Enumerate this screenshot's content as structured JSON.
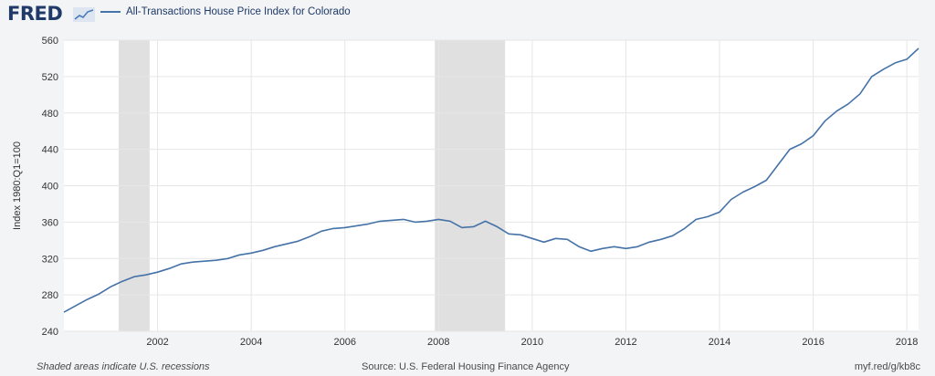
{
  "header": {
    "logo_text": "FRED",
    "logo_icon": "fred-chart-icon"
  },
  "footer": {
    "note": "Shaded areas indicate U.S. recessions",
    "source": "Source: U.S. Federal Housing Finance Agency",
    "link": "myf.red/g/kb8c"
  },
  "colors": {
    "line": "#4572a7",
    "recession": "#e0e0e0",
    "plot_bg": "#ffffff",
    "frame_bg": "#f3f4f6",
    "grid": "#e6e6e6"
  },
  "chart_data": {
    "type": "line",
    "title": "",
    "xlabel": "",
    "ylabel": "Index 1980:Q1=100",
    "xlim": [
      2000.0,
      2018.25
    ],
    "ylim": [
      240,
      560
    ],
    "yticks": [
      240,
      280,
      320,
      360,
      400,
      440,
      480,
      520,
      560
    ],
    "xticks": [
      2002,
      2004,
      2006,
      2008,
      2010,
      2012,
      2014,
      2016,
      2018
    ],
    "grid": true,
    "legend_position": "top-left",
    "recessions": [
      [
        2001.17,
        2001.83
      ],
      [
        2007.92,
        2009.42
      ]
    ],
    "series": [
      {
        "name": "All-Transactions House Price Index for Colorado",
        "x": [
          2000.0,
          2000.25,
          2000.5,
          2000.75,
          2001.0,
          2001.25,
          2001.5,
          2001.75,
          2002.0,
          2002.25,
          2002.5,
          2002.75,
          2003.0,
          2003.25,
          2003.5,
          2003.75,
          2004.0,
          2004.25,
          2004.5,
          2004.75,
          2005.0,
          2005.25,
          2005.5,
          2005.75,
          2006.0,
          2006.25,
          2006.5,
          2006.75,
          2007.0,
          2007.25,
          2007.5,
          2007.75,
          2008.0,
          2008.25,
          2008.5,
          2008.75,
          2009.0,
          2009.25,
          2009.5,
          2009.75,
          2010.0,
          2010.25,
          2010.5,
          2010.75,
          2011.0,
          2011.25,
          2011.5,
          2011.75,
          2012.0,
          2012.25,
          2012.5,
          2012.75,
          2013.0,
          2013.25,
          2013.5,
          2013.75,
          2014.0,
          2014.25,
          2014.5,
          2014.75,
          2015.0,
          2015.25,
          2015.5,
          2015.75,
          2016.0,
          2016.25,
          2016.5,
          2016.75,
          2017.0,
          2017.25,
          2017.5,
          2017.75,
          2018.0,
          2018.25
        ],
        "values": [
          261,
          268,
          275,
          281,
          289,
          295,
          300,
          302,
          305,
          309,
          314,
          316,
          317,
          318,
          320,
          324,
          326,
          329,
          333,
          336,
          339,
          344,
          350,
          353,
          354,
          356,
          358,
          361,
          362,
          363,
          360,
          361,
          363,
          361,
          354,
          355,
          361,
          355,
          347,
          346,
          342,
          338,
          342,
          341,
          333,
          328,
          331,
          333,
          331,
          333,
          338,
          341,
          345,
          353,
          363,
          366,
          371,
          385,
          393,
          399,
          406,
          423,
          440,
          446,
          455,
          471,
          482,
          490,
          501,
          520,
          528,
          535,
          539,
          551
        ]
      }
    ]
  }
}
